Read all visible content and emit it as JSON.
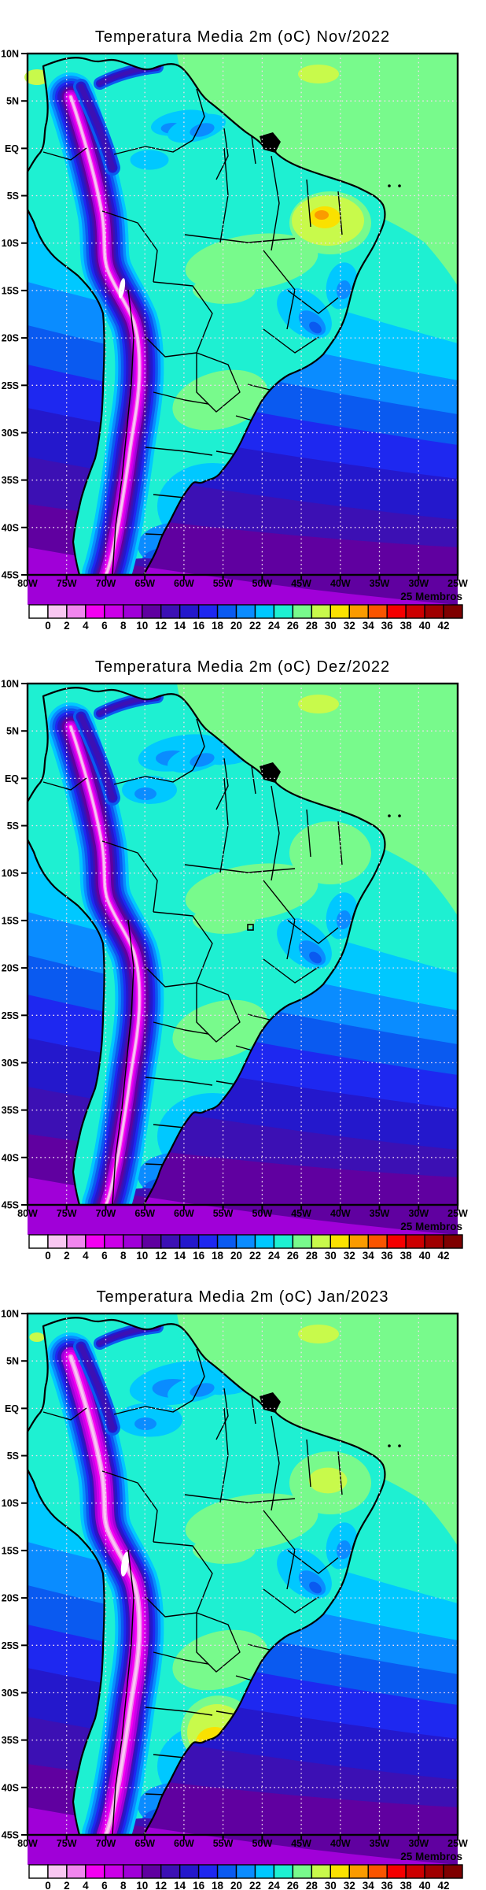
{
  "figure": {
    "kind": "ensemble-mean 2m temperature filled-contour maps",
    "region_grid": "South America"
  },
  "panels": [
    {
      "title": "Temperatura Media 2m (oC) Nov/2022",
      "members_label": "25 Membros"
    },
    {
      "title": "Temperatura Media 2m (oC) Dez/2022",
      "members_label": "25 Membros"
    },
    {
      "title": "Temperatura Media 2m (oC) Jan/2023",
      "members_label": "25 Membros"
    }
  ],
  "axes": {
    "lat_labels": [
      "10N",
      "5N",
      "EQ",
      "5S",
      "10S",
      "15S",
      "20S",
      "25S",
      "30S",
      "35S",
      "40S",
      "45S"
    ],
    "lon_labels": [
      "80W",
      "75W",
      "70W",
      "65W",
      "60W",
      "55W",
      "50W",
      "45W",
      "40W",
      "35W",
      "30W",
      "25W"
    ]
  },
  "colorbar": {
    "tick_labels": [
      "0",
      "2",
      "4",
      "6",
      "8",
      "10",
      "12",
      "14",
      "16",
      "18",
      "20",
      "22",
      "24",
      "26",
      "28",
      "30",
      "32",
      "34",
      "36",
      "38",
      "40",
      "42"
    ],
    "colors": [
      "#ffffff",
      "#f9c7f2",
      "#f286ef",
      "#f400f2",
      "#cb00e8",
      "#a000d8",
      "#6000a0",
      "#3c10b4",
      "#2418cc",
      "#1e28f0",
      "#0a5af0",
      "#0a8cff",
      "#00c8ff",
      "#1ef0d2",
      "#78fa8c",
      "#c8fa4b",
      "#fae100",
      "#fa9b00",
      "#fa5500",
      "#f50000",
      "#cc0000",
      "#a00000",
      "#7f0000"
    ],
    "grid_dot_color": "#f2dcf0",
    "frame_color": "#000000"
  }
}
